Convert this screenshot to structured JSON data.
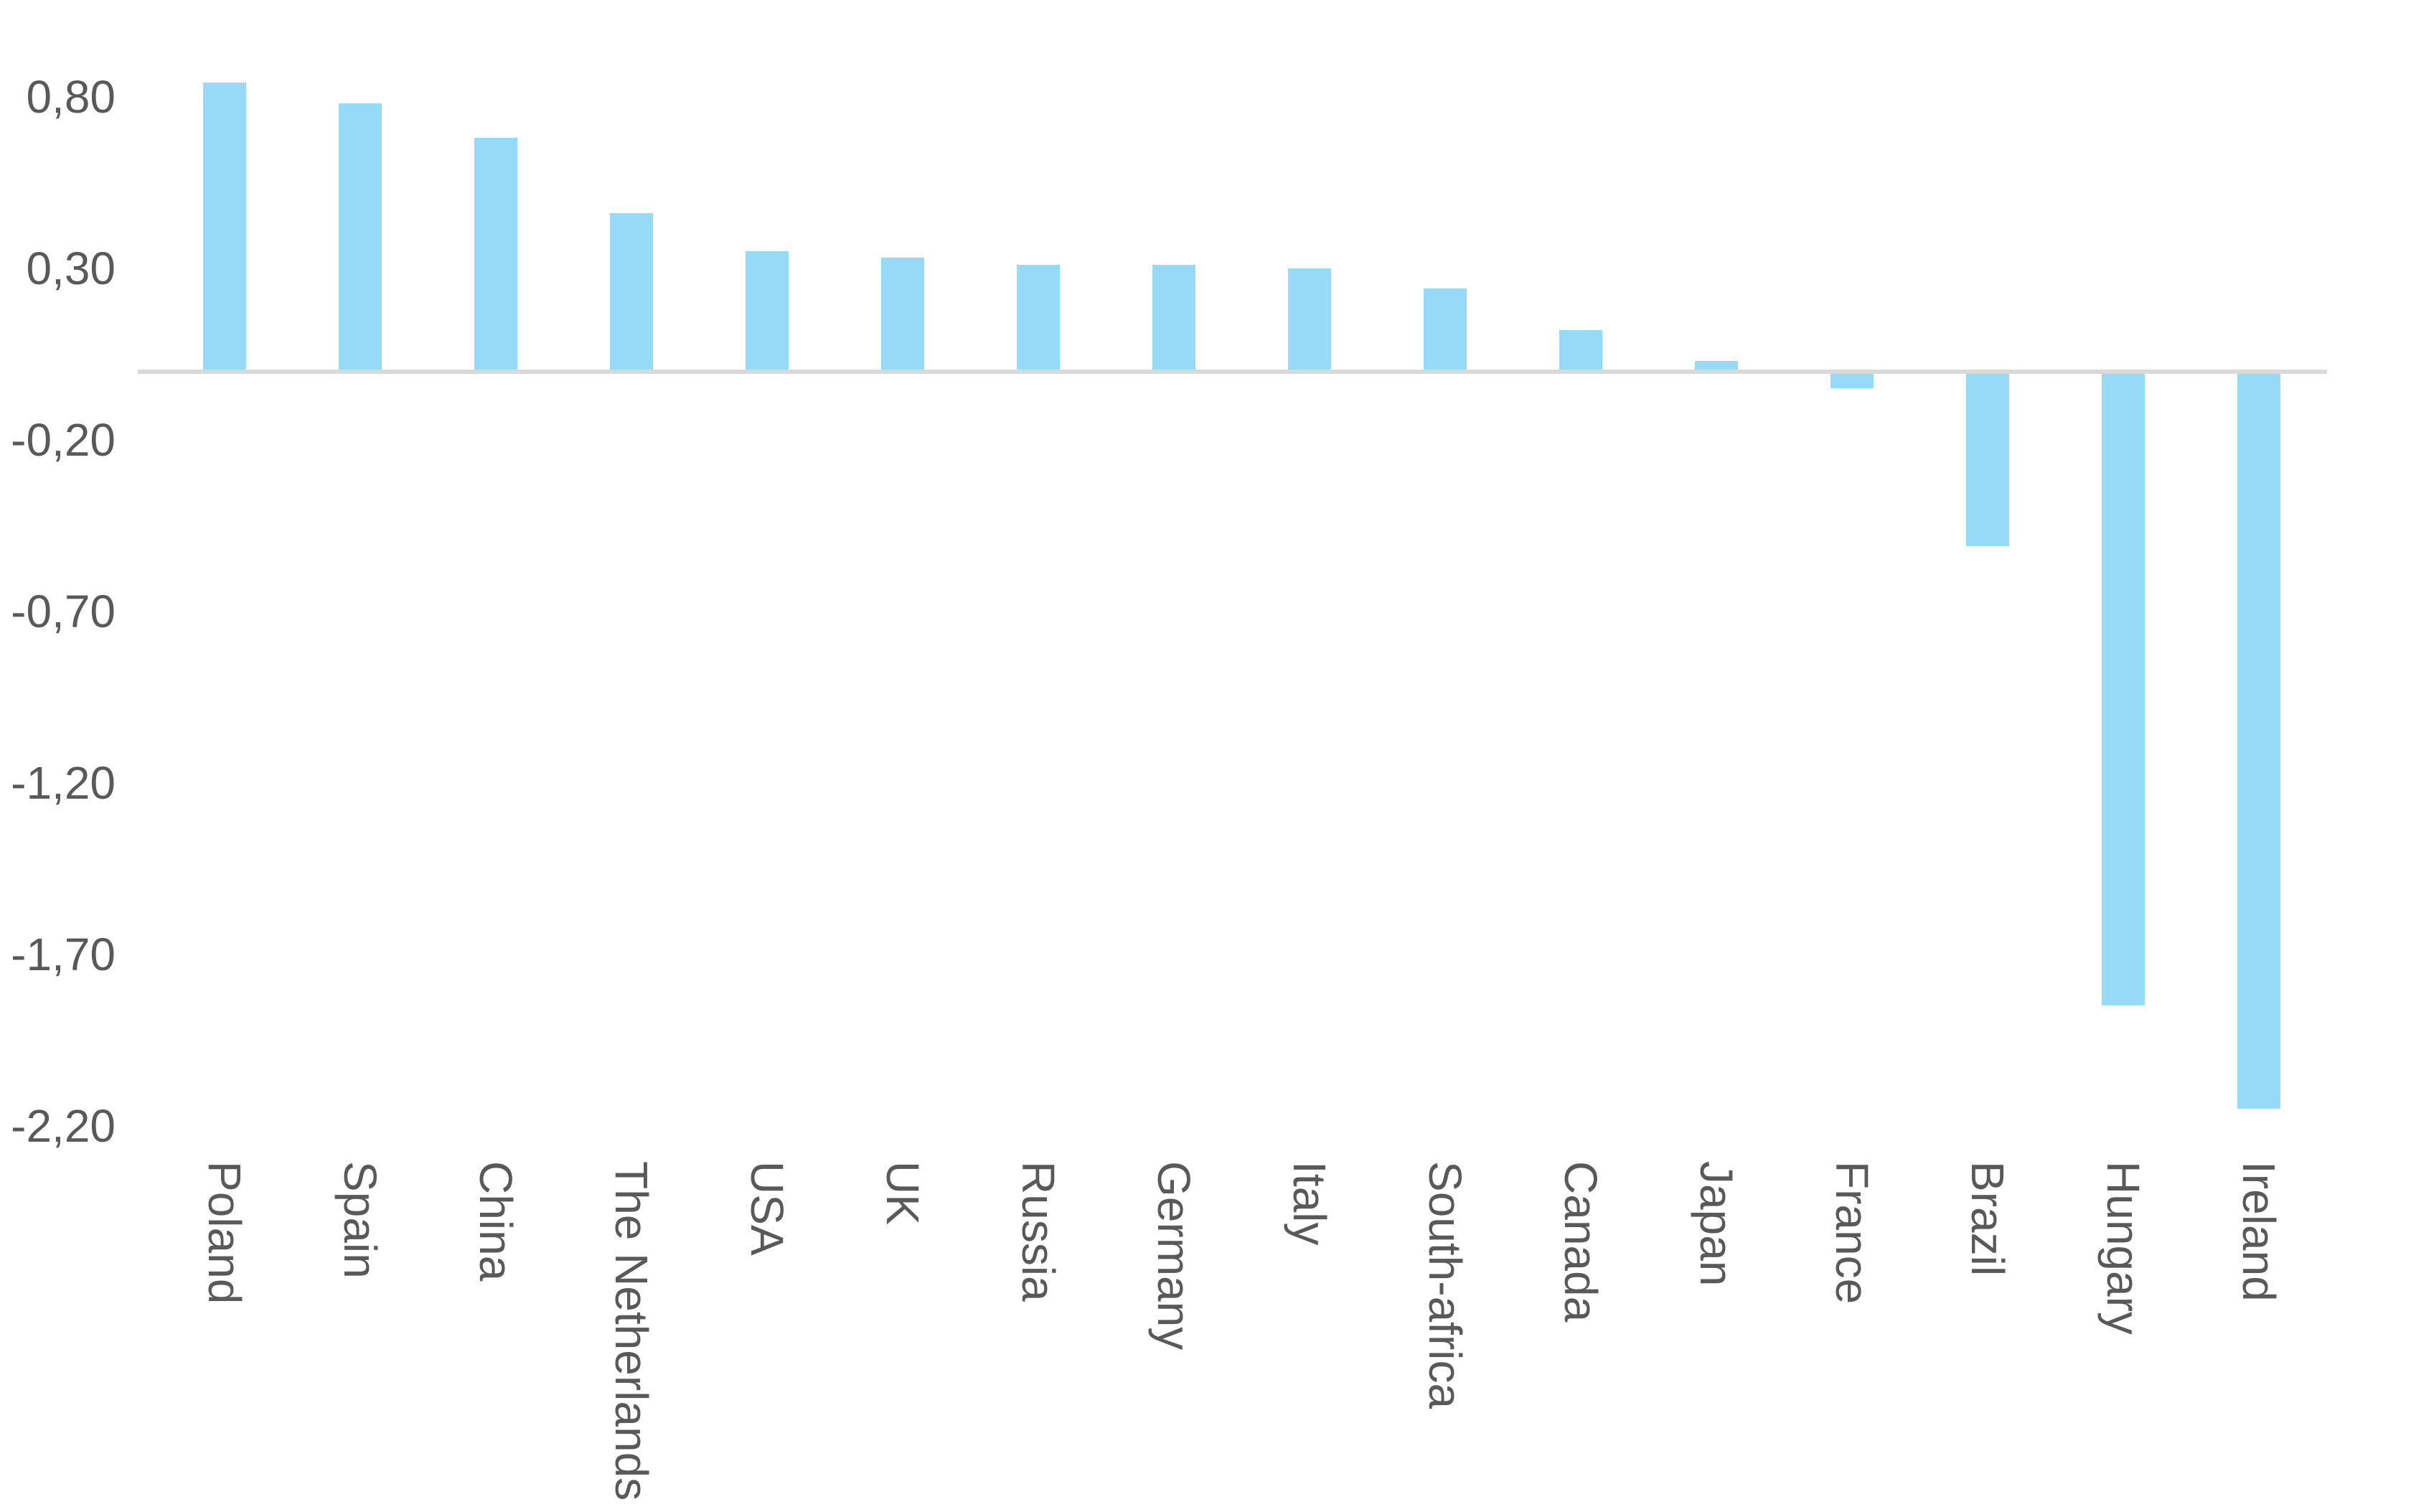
{
  "chart_data": {
    "type": "bar",
    "title": "",
    "xlabel": "",
    "ylabel": "",
    "categories": [
      "Poland",
      "Spain",
      "China",
      "The Netherlands",
      "USA",
      "UK",
      "Russia",
      "Germany",
      "Italy",
      "South-africa",
      "Canada",
      "Japan",
      "France",
      "Brazil",
      "Hungary",
      "Ireland"
    ],
    "values": [
      0.84,
      0.78,
      0.68,
      0.46,
      0.35,
      0.33,
      0.31,
      0.31,
      0.3,
      0.24,
      0.12,
      0.03,
      -0.05,
      -0.51,
      -1.85,
      -2.15
    ],
    "y_axis": {
      "tick_labels": [
        "0,80",
        "0,30",
        "-0,20",
        "-0,70",
        "-1,20",
        "-1,70",
        "-2,20"
      ],
      "tick_values": [
        0.8,
        0.3,
        -0.2,
        -0.7,
        -1.2,
        -1.7,
        -2.2
      ],
      "decimal_separator": ","
    },
    "ylim": [
      -2.45,
      1.08
    ],
    "grid": false,
    "legend": false,
    "x_label_rotation_degrees": 90,
    "colors": {
      "bar": "#97DAF7",
      "axis_line": "#D9D9D9",
      "text": "#595959",
      "background": "#FFFFFF"
    }
  }
}
